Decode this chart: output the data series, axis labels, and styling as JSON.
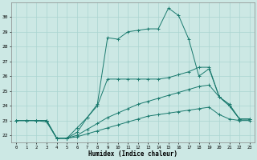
{
  "xlabel": "Humidex (Indice chaleur)",
  "bg_color": "#cce8e4",
  "line_color": "#1a7a6e",
  "grid_color": "#aad4d0",
  "xlim": [
    -0.5,
    23.5
  ],
  "ylim": [
    21.5,
    31.0
  ],
  "yticks": [
    22,
    23,
    24,
    25,
    26,
    27,
    28,
    29,
    30
  ],
  "xticks": [
    0,
    1,
    2,
    3,
    4,
    5,
    6,
    7,
    8,
    9,
    10,
    11,
    12,
    13,
    14,
    15,
    16,
    17,
    18,
    19,
    20,
    21,
    22,
    23
  ],
  "series": [
    {
      "x": [
        0,
        1,
        2,
        3,
        4,
        5,
        6,
        7,
        8,
        9,
        10,
        11,
        12,
        13,
        14,
        15,
        16,
        17,
        18,
        19,
        20,
        21,
        22,
        23
      ],
      "y": [
        23,
        23,
        23,
        23,
        21.8,
        21.8,
        22.2,
        23.2,
        24.1,
        28.6,
        28.5,
        29.0,
        29.1,
        29.2,
        29.2,
        30.6,
        30.1,
        28.5,
        26.0,
        26.5,
        24.6,
        24.0,
        23.1,
        23.1
      ]
    },
    {
      "x": [
        0,
        1,
        2,
        3,
        4,
        5,
        6,
        7,
        8,
        9,
        10,
        11,
        12,
        13,
        14,
        15,
        16,
        17,
        18,
        19,
        20,
        21,
        22,
        23
      ],
      "y": [
        23,
        23,
        23,
        23,
        21.8,
        21.8,
        22.5,
        23.2,
        24.0,
        25.8,
        25.8,
        25.8,
        25.8,
        25.8,
        25.8,
        25.9,
        26.1,
        26.3,
        26.6,
        26.6,
        24.6,
        24.1,
        23.1,
        23.1
      ]
    },
    {
      "x": [
        0,
        1,
        2,
        3,
        4,
        5,
        6,
        7,
        8,
        9,
        10,
        11,
        12,
        13,
        14,
        15,
        16,
        17,
        18,
        19,
        20,
        21,
        22,
        23
      ],
      "y": [
        23,
        23,
        23,
        23,
        21.8,
        21.8,
        22.0,
        22.4,
        22.8,
        23.2,
        23.5,
        23.8,
        24.1,
        24.3,
        24.5,
        24.7,
        24.9,
        25.1,
        25.3,
        25.4,
        24.6,
        24.0,
        23.1,
        23.1
      ]
    },
    {
      "x": [
        0,
        1,
        2,
        3,
        4,
        5,
        6,
        7,
        8,
        9,
        10,
        11,
        12,
        13,
        14,
        15,
        16,
        17,
        18,
        19,
        20,
        21,
        22,
        23
      ],
      "y": [
        23,
        23,
        23,
        22.9,
        21.8,
        21.8,
        21.9,
        22.1,
        22.3,
        22.5,
        22.7,
        22.9,
        23.1,
        23.3,
        23.4,
        23.5,
        23.6,
        23.7,
        23.8,
        23.9,
        23.4,
        23.1,
        23.0,
        23.0
      ]
    }
  ]
}
